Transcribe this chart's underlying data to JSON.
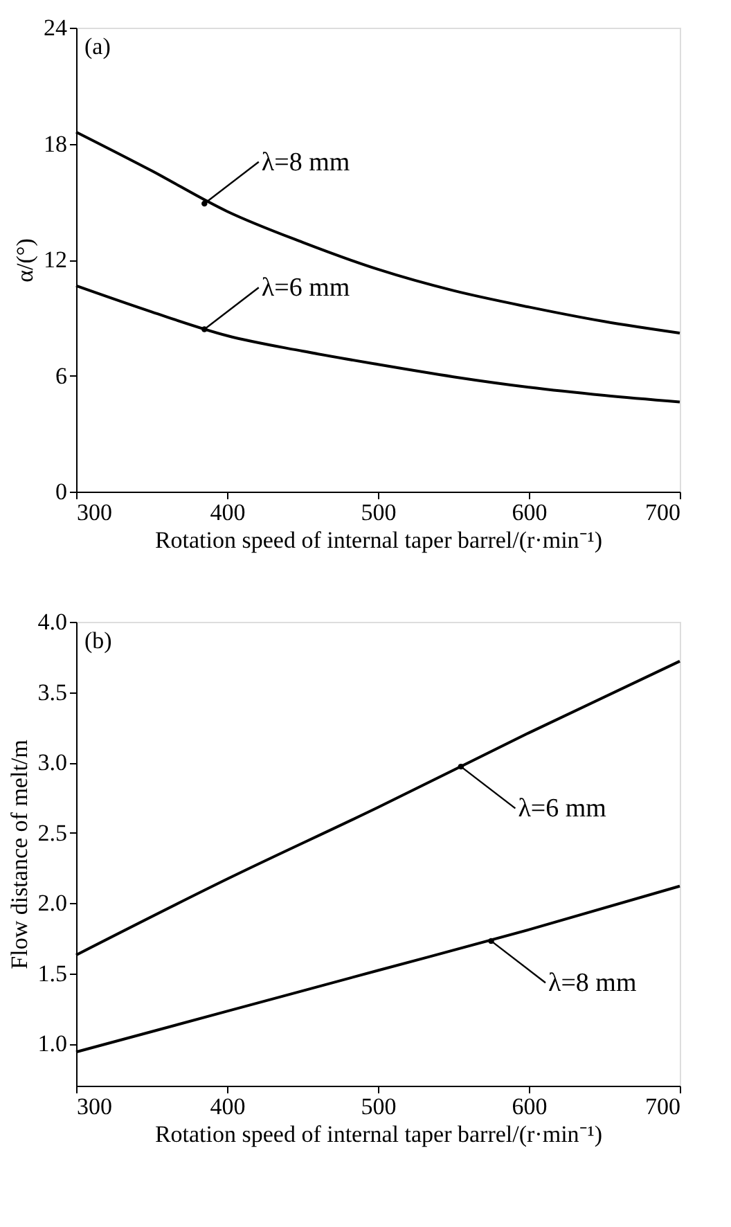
{
  "chart_data": [
    {
      "type": "line",
      "title": "(a)",
      "xlabel": "Rotation speed of internal taper barrel/(r·min⁻¹)",
      "ylabel": "α/(°)",
      "x": [
        300,
        350,
        400,
        450,
        500,
        550,
        600,
        650,
        700
      ],
      "series": [
        {
          "color": "#000000",
          "values": [
            18.6,
            16.6,
            14.5,
            12.9,
            11.5,
            10.4,
            9.55,
            8.8,
            8.2
          ]
        },
        {
          "color": "#000000",
          "values": [
            10.65,
            9.3,
            8.07,
            7.27,
            6.58,
            5.94,
            5.4,
            4.98,
            4.64
          ]
        }
      ],
      "xlim": [
        300,
        700
      ],
      "xticks": [
        300,
        400,
        500,
        600,
        700
      ],
      "ylim": [
        0,
        24
      ],
      "yticks": [
        0,
        6,
        12,
        18,
        24
      ],
      "annotations": [
        {
          "text": "λ=8 mm",
          "x": 385,
          "y": 14.9
        },
        {
          "text": "λ=6 mm",
          "x": 385,
          "y": 8.4
        }
      ],
      "grid": false,
      "legend": false,
      "line_style": "solid",
      "marker": "none"
    },
    {
      "type": "line",
      "title": "(b)",
      "xlabel": "Rotation speed of internal taper barrel/(r·min⁻¹)",
      "ylabel": "Flow distance of melt/m",
      "x": [
        300,
        400,
        500,
        600,
        700
      ],
      "series": [
        {
          "color": "#000000",
          "values": [
            1.63,
            2.17,
            2.68,
            3.21,
            3.72
          ]
        },
        {
          "color": "#000000",
          "values": [
            0.94,
            1.23,
            1.52,
            1.81,
            2.12
          ]
        }
      ],
      "xlim": [
        300,
        700
      ],
      "xticks": [
        300,
        400,
        500,
        600,
        700
      ],
      "ylim": [
        0.7,
        4.0
      ],
      "yticks": [
        {
          "value": 1,
          "label": "1.0"
        },
        1.5,
        {
          "value": 2,
          "label": "2.0"
        },
        2.5,
        {
          "value": 3,
          "label": "3.0"
        },
        3.5,
        {
          "value": 4,
          "label": "4.0"
        }
      ],
      "annotations": [
        {
          "text": "λ=6 mm",
          "x": 555,
          "y": 2.97
        },
        {
          "text": "λ=8 mm",
          "x": 575,
          "y": 1.73
        }
      ],
      "grid": false,
      "legend": false,
      "line_style": "solid",
      "marker": "none"
    }
  ]
}
